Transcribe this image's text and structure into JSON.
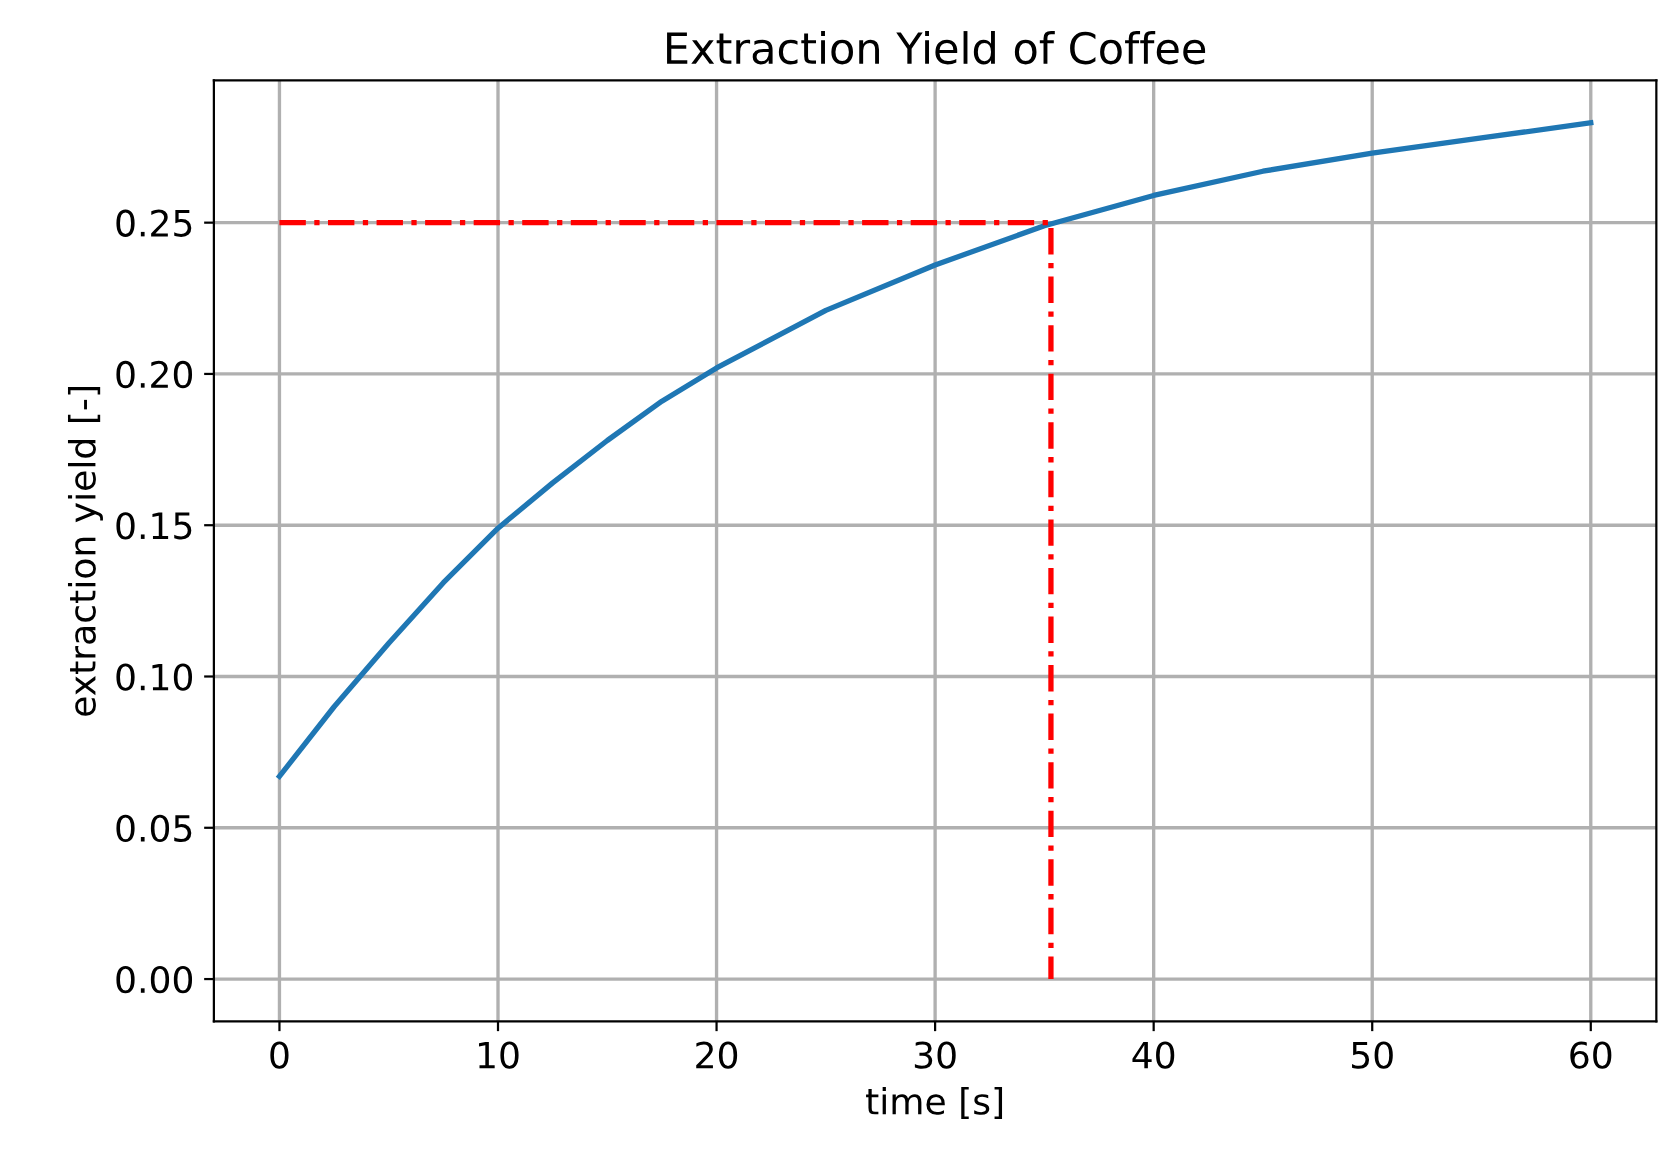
{
  "chart_data": {
    "type": "line",
    "title": "Extraction Yield of Coffee",
    "xlabel": "time [s]",
    "ylabel": "extraction yield [-]",
    "series": [
      {
        "color": "#1f77b4",
        "line_style": "solid",
        "x": [
          0,
          2.5,
          5,
          7.5,
          10,
          12.5,
          15,
          17.5,
          20,
          25,
          30,
          35,
          40,
          45,
          50,
          55,
          60
        ],
        "values": [
          0.067,
          0.09,
          0.111,
          0.131,
          0.149,
          0.164,
          0.178,
          0.191,
          0.202,
          0.221,
          0.236,
          0.249,
          0.259,
          0.267,
          0.273,
          0.278,
          0.283
        ]
      },
      {
        "color": "#ff0000",
        "line_style": "dashdot",
        "x": [
          0,
          35.3,
          35.3
        ],
        "values": [
          0.25,
          0.25,
          0
        ]
      }
    ],
    "xlim": [
      -3,
      63
    ],
    "ylim": [
      -0.014,
      0.297
    ],
    "xticks": [
      0,
      10,
      20,
      30,
      40,
      50,
      60
    ],
    "yticks": [
      {
        "value": 0,
        "label": "0.00"
      },
      {
        "value": 0.05,
        "label": "0.05"
      },
      {
        "value": 0.1,
        "label": "0.10"
      },
      {
        "value": 0.15,
        "label": "0.15"
      },
      {
        "value": 0.2,
        "label": "0.20"
      },
      {
        "value": 0.25,
        "label": "0.25"
      }
    ],
    "grid": true,
    "legend": false
  }
}
